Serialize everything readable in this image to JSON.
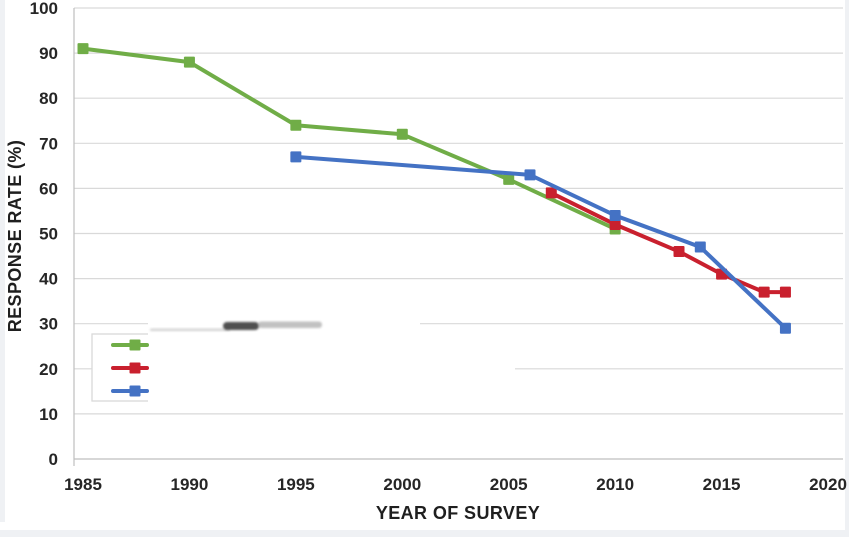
{
  "page": {
    "background": "#ffffff",
    "edge_strip_color": "#eff1f4"
  },
  "chart_data": {
    "type": "line",
    "title": "",
    "xlabel": "YEAR OF SURVEY",
    "ylabel": "RESPONSE RATE (%)",
    "x_ticks": [
      1985,
      1990,
      1995,
      2000,
      2005,
      2010,
      2015,
      2020
    ],
    "y_ticks": [
      0,
      10,
      20,
      30,
      40,
      50,
      60,
      70,
      80,
      90,
      100
    ],
    "xlim": [
      1984.6,
      2020.7
    ],
    "ylim": [
      0,
      100
    ],
    "grid": "horizontal",
    "legend_position": "inside-lower-left",
    "legend_note": "legend label text is blanked out by a white redaction box; only colored line-marker swatches remain, plus faint smudge remnants above the box",
    "series": [
      {
        "name": "green-series",
        "label": "",
        "color": "#70AD47",
        "points": [
          [
            1985,
            91
          ],
          [
            1990,
            88
          ],
          [
            1995,
            74
          ],
          [
            2000,
            72
          ],
          [
            2005,
            62
          ],
          [
            2010,
            51
          ]
        ]
      },
      {
        "name": "red-series",
        "label": "",
        "color": "#C9202E",
        "points": [
          [
            2007,
            59
          ],
          [
            2010,
            52
          ],
          [
            2013,
            46
          ],
          [
            2015,
            41
          ],
          [
            2017,
            37
          ],
          [
            2018,
            37
          ]
        ]
      },
      {
        "name": "blue-series",
        "label": "",
        "color": "#4472C4",
        "points": [
          [
            1995,
            67
          ],
          [
            2006,
            63
          ],
          [
            2010,
            54
          ],
          [
            2014,
            47
          ],
          [
            2018,
            29
          ]
        ]
      }
    ]
  },
  "colors": {
    "gridline": "#d9d9d9",
    "axis_line": "#bfbfbf",
    "tick_label": "#262626",
    "axis_title": "#1f1f1f",
    "legend_border": "#d9d9d9",
    "smudge_dark": "#303030",
    "smudge_gray": "#909090",
    "smudge_light": "#c8c8c8"
  }
}
